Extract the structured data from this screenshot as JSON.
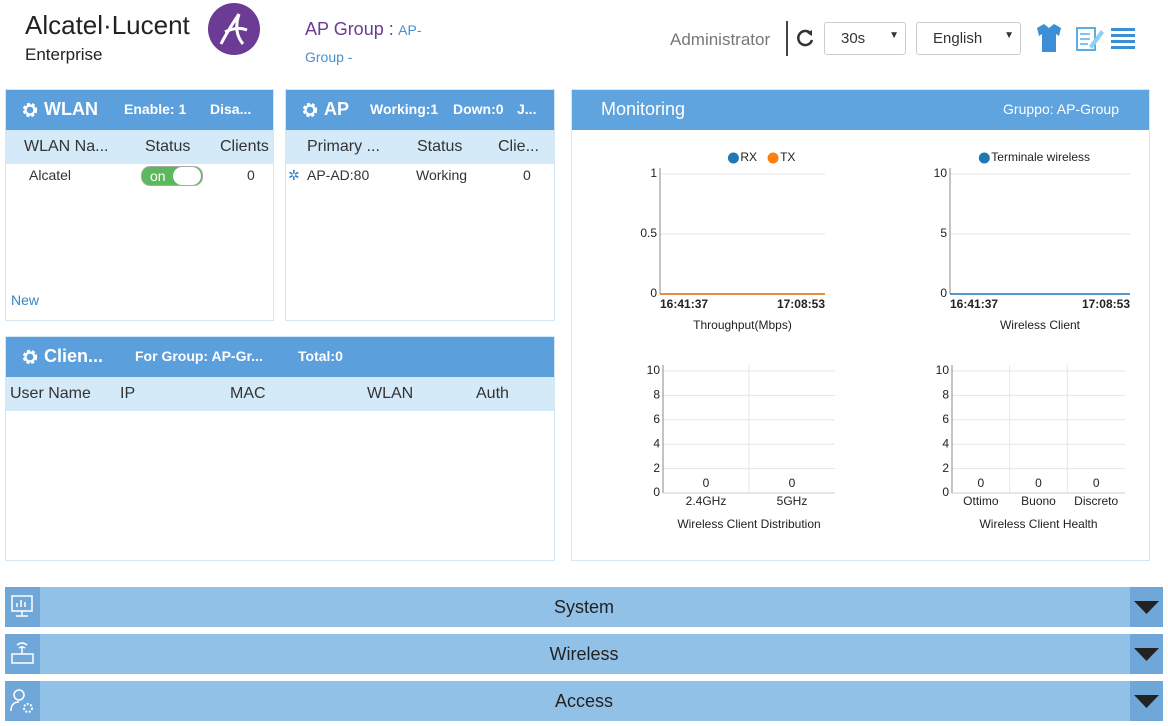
{
  "header": {
    "brand": "Alcatel·Lucent",
    "brand_sub": "Enterprise",
    "group_label": "AP Group :",
    "group_value": "AP-Group -",
    "user": "Administrator",
    "refresh": "30s",
    "language": "English"
  },
  "wlan": {
    "title": "WLAN",
    "summary": [
      "Enable: 1",
      "Disa..."
    ],
    "columns": [
      "WLAN Na...",
      "Status",
      "Clients"
    ],
    "rows": [
      [
        "Alcatel",
        "on",
        0
      ]
    ],
    "new": "New"
  },
  "ap": {
    "title": "AP",
    "summary": [
      "Working:1",
      "Down:0",
      "J..."
    ],
    "columns": [
      "Primary ...",
      "Status",
      "Clie..."
    ],
    "rows": [
      [
        "AP-AD:80",
        "Working",
        0
      ]
    ]
  },
  "clients": {
    "title": "Clien...",
    "summary": [
      "For Group: AP-Gr...",
      "Total:0"
    ],
    "columns": [
      "User Name",
      "IP",
      "MAC",
      "WLAN",
      "Auth"
    ]
  },
  "monitoring": {
    "title": "Monitoring",
    "group": "Gruppo: AP-Group",
    "charts": [
      {
        "type": "line",
        "x": [
          "16:41:37",
          "17:08:53"
        ],
        "series": [
          {
            "name": "RX",
            "color": "#1f77b4",
            "values": [
              0,
              0
            ]
          },
          {
            "name": "TX",
            "color": "#ff7f0e",
            "values": [
              0,
              0
            ]
          }
        ],
        "ylim": [
          0,
          1
        ],
        "yticks": [
          0,
          0.5,
          1
        ],
        "xlabel": "Throughput(Mbps)"
      },
      {
        "type": "line",
        "x": [
          "16:41:37",
          "17:08:53"
        ],
        "series": [
          {
            "name": "Terminale wireless",
            "color": "#1f77b4",
            "values": [
              0,
              0
            ]
          }
        ],
        "ylim": [
          0,
          10
        ],
        "yticks": [
          0,
          5,
          10
        ],
        "xlabel": "Wireless Client"
      },
      {
        "type": "bar",
        "categories": [
          "2.4GHz",
          "5GHz"
        ],
        "values": [
          0,
          0
        ],
        "colors": [
          "#1f77b4",
          "#ff7f0e"
        ],
        "ylim": [
          0,
          10
        ],
        "yticks": [
          0,
          2,
          4,
          6,
          8,
          10
        ],
        "xlabel": "Wireless Client Distribution"
      },
      {
        "type": "bar",
        "categories": [
          "Ottimo",
          "Buono",
          "Discreto"
        ],
        "values": [
          0,
          0,
          0
        ],
        "colors": [
          "#1f77b4",
          "#ff7f0e",
          "#1f77b4"
        ],
        "ylim": [
          0,
          10
        ],
        "yticks": [
          0,
          2,
          4,
          6,
          8,
          10
        ],
        "xlabel": "Wireless Client Health"
      }
    ]
  },
  "sections": [
    "System",
    "Wireless",
    "Access"
  ]
}
